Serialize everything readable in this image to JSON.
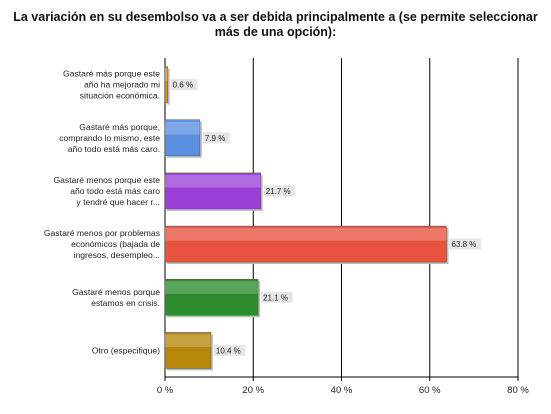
{
  "chart_data": {
    "type": "bar",
    "orientation": "horizontal",
    "title_lines": [
      "La variación en su desembolso va a ser debida principalmente a (se permite seleccionar",
      "más de una opción):"
    ],
    "categories": [
      [
        "Gastaré más porque este",
        "año ha mejorado mi",
        "situación económica."
      ],
      [
        "Gastaré más porque,",
        "comprando lo mismo, este",
        "año todo está más caro."
      ],
      [
        "Gastaré menos porque este",
        "año todo está más caro",
        "y tendré que hacer r..."
      ],
      [
        "Gastaré menos por problemas",
        "económicos (bajada de",
        "ingresos, desempleo..."
      ],
      [
        "Gastaré menos porque",
        "estamos en crisis."
      ],
      [
        "Otro (especifique)"
      ]
    ],
    "values": [
      0.6,
      7.9,
      21.7,
      63.8,
      21.1,
      10.4
    ],
    "value_labels": [
      "0.6 %",
      "7.9 %",
      "21.7 %",
      "63.8 %",
      "21.1 %",
      "10.4 %"
    ],
    "colors": [
      "#e08a1e",
      "#5b8fe0",
      "#9b3fd6",
      "#e8533f",
      "#2e8b2e",
      "#b8860b"
    ],
    "xlim": [
      0,
      80
    ],
    "xticks": [
      0,
      20,
      40,
      60,
      80
    ],
    "xtick_labels": [
      "0 %",
      "20 %",
      "40 %",
      "60 %",
      "80 %"
    ],
    "grid": true
  }
}
